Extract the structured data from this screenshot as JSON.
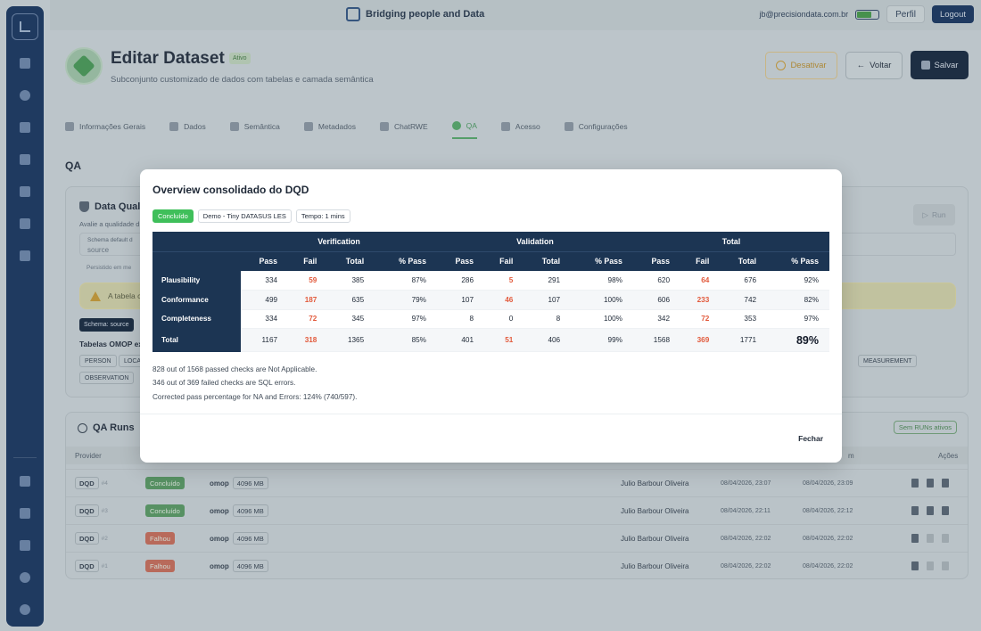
{
  "topbar": {
    "brand": "Bridging people and Data",
    "email": "jb@precisiondata.com.br",
    "perfil": "Perfil",
    "logout": "Logout"
  },
  "header": {
    "title": "Editar Dataset",
    "badge": "Ativo",
    "subtitle": "Subconjunto customizado de dados com tabelas e camada semântica",
    "btn_desativar": "Desativar",
    "btn_voltar": "Voltar",
    "btn_salvar": "Salvar"
  },
  "tabs": [
    {
      "label": "Informações Gerais"
    },
    {
      "label": "Dados"
    },
    {
      "label": "Semântica"
    },
    {
      "label": "Metadados"
    },
    {
      "label": "ChatRWE"
    },
    {
      "label": "QA"
    },
    {
      "label": "Acesso"
    },
    {
      "label": "Configurações"
    }
  ],
  "section_title": "QA",
  "dq_card": {
    "title": "Data Qual",
    "desc": "Avalie a qualidade d",
    "schema_label": "Schema default d",
    "schema_value": "source",
    "persisted": "Persistido em me",
    "run": "Run",
    "warning": "A tabela c",
    "schema_chip": "Schema: source",
    "omop_title": "Tabelas OMOP ex",
    "chips": [
      "PERSON",
      "LOCA",
      "OBSERVATION",
      "E",
      "MEASUREMENT"
    ]
  },
  "runs_card": {
    "title": "QA Runs",
    "sem_runs": "Sem RUNs ativos",
    "col_provider": "Provider",
    "col_m": "m",
    "col_acoes": "Ações",
    "rows": [
      {
        "provider": "DQD",
        "num": "#4",
        "status": "Concluído",
        "db": "omop",
        "size": "4096 MB",
        "user": "Julio Barbour Oliveira",
        "start": "08/04/2026, 23:07",
        "end": "08/04/2026, 23:09"
      },
      {
        "provider": "DQD",
        "num": "#3",
        "status": "Concluído",
        "db": "omop",
        "size": "4096 MB",
        "user": "Julio Barbour Oliveira",
        "start": "08/04/2026, 22:11",
        "end": "08/04/2026, 22:12"
      },
      {
        "provider": "DQD",
        "num": "#2",
        "status": "Falhou",
        "db": "omop",
        "size": "4096 MB",
        "user": "Julio Barbour Oliveira",
        "start": "08/04/2026, 22:02",
        "end": "08/04/2026, 22:02"
      },
      {
        "provider": "DQD",
        "num": "#1",
        "status": "Falhou",
        "db": "omop",
        "size": "4096 MB",
        "user": "Julio Barbour Oliveira",
        "start": "08/04/2026, 22:02",
        "end": "08/04/2026, 22:02"
      }
    ]
  },
  "modal": {
    "title": "Overview consolidado do DQD",
    "tags": [
      "Concluído",
      "Demo - Tiny DATASUS LES",
      "Tempo: 1 mins"
    ],
    "groups": [
      "Verification",
      "Validation",
      "Total"
    ],
    "columns": [
      "Pass",
      "Fail",
      "Total",
      "% Pass",
      "Pass",
      "Fail",
      "Total",
      "% Pass",
      "Pass",
      "Fail",
      "Total",
      "% Pass"
    ],
    "rows": [
      {
        "label": "Plausibility",
        "cells": [
          "334",
          "59",
          "385",
          "87%",
          "286",
          "5",
          "291",
          "98%",
          "620",
          "64",
          "676",
          "92%"
        ]
      },
      {
        "label": "Conformance",
        "cells": [
          "499",
          "187",
          "635",
          "79%",
          "107",
          "46",
          "107",
          "100%",
          "606",
          "233",
          "742",
          "82%"
        ]
      },
      {
        "label": "Completeness",
        "cells": [
          "334",
          "72",
          "345",
          "97%",
          "8",
          "0",
          "8",
          "100%",
          "342",
          "72",
          "353",
          "97%"
        ]
      },
      {
        "label": "Total",
        "cells": [
          "1167",
          "318",
          "1365",
          "85%",
          "401",
          "51",
          "406",
          "99%",
          "1568",
          "369",
          "1771",
          "89%"
        ]
      }
    ],
    "notes": [
      "828 out of 1568 passed checks are Not Applicable.",
      "346 out of 369 failed checks are SQL errors.",
      "Corrected pass percentage for NA and Errors: 124% (740/597)."
    ],
    "close": "Fechar"
  }
}
